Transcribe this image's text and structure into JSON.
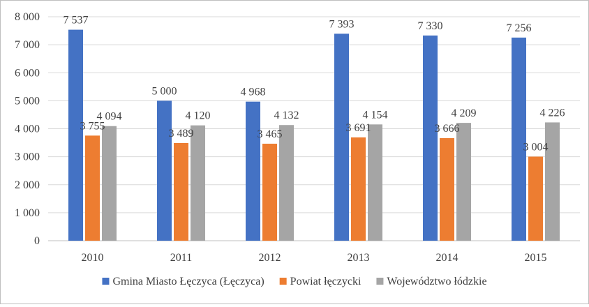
{
  "chart_data": {
    "type": "bar",
    "categories": [
      "2010",
      "2011",
      "2012",
      "2013",
      "2014",
      "2015"
    ],
    "series": [
      {
        "name": "Gmina Miasto Łęczyca (Łęczyca)",
        "color": "#4472C4",
        "values": [
          7537,
          5000,
          4968,
          7393,
          7330,
          7256
        ],
        "labels": [
          "7 537",
          "5 000",
          "4 968",
          "7 393",
          "7 330",
          "7 256"
        ]
      },
      {
        "name": "Powiat łęczycki",
        "color": "#ED7D31",
        "values": [
          3755,
          3489,
          3465,
          3691,
          3666,
          3004
        ],
        "labels": [
          "3 755",
          "3 489",
          "3 465",
          "3 691",
          "3 666",
          "3 004"
        ]
      },
      {
        "name": "Województwo łódzkie",
        "color": "#A5A5A5",
        "values": [
          4094,
          4120,
          4132,
          4154,
          4209,
          4226
        ],
        "labels": [
          "4 094",
          "4 120",
          "4 132",
          "4 154",
          "4 209",
          "4 226"
        ]
      }
    ],
    "ylim": [
      0,
      8000
    ],
    "yticks": [
      0,
      1000,
      2000,
      3000,
      4000,
      5000,
      6000,
      7000,
      8000
    ],
    "ytick_labels": [
      "0",
      "1 000",
      "2 000",
      "3 000",
      "4 000",
      "5 000",
      "6 000",
      "7 000",
      "8 000"
    ],
    "grid": true,
    "legend_position": "bottom",
    "title": "",
    "xlabel": "",
    "ylabel": ""
  }
}
